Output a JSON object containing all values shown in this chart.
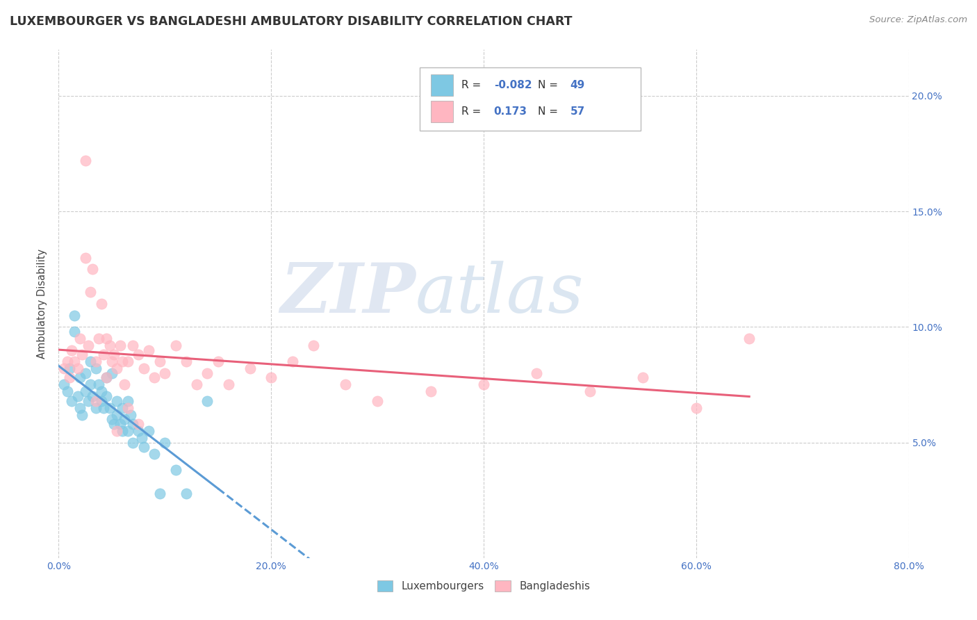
{
  "title": "LUXEMBOURGER VS BANGLADESHI AMBULATORY DISABILITY CORRELATION CHART",
  "source_text": "Source: ZipAtlas.com",
  "ylabel": "Ambulatory Disability",
  "x_min": 0.0,
  "x_max": 0.8,
  "y_min": 0.0,
  "y_max": 0.22,
  "x_ticks": [
    0.0,
    0.2,
    0.4,
    0.6,
    0.8
  ],
  "x_tick_labels": [
    "0.0%",
    "20.0%",
    "40.0%",
    "60.0%",
    "80.0%"
  ],
  "y_ticks": [
    0.05,
    0.1,
    0.15,
    0.2
  ],
  "right_y_tick_labels": [
    "5.0%",
    "10.0%",
    "15.0%",
    "20.0%"
  ],
  "lux_color": "#7ec8e3",
  "bang_color": "#ffb6c1",
  "lux_line_color": "#5b9bd5",
  "bang_line_color": "#e8607a",
  "lux_R": -0.082,
  "lux_N": 49,
  "bang_R": 0.173,
  "bang_N": 57,
  "watermark_zip": "ZIP",
  "watermark_atlas": "atlas",
  "legend_lux": "Luxembourgers",
  "legend_bang": "Bangladeshis",
  "background_color": "#ffffff",
  "grid_color": "#cccccc",
  "lux_scatter_x": [
    0.005,
    0.008,
    0.01,
    0.012,
    0.015,
    0.015,
    0.018,
    0.02,
    0.02,
    0.022,
    0.025,
    0.025,
    0.028,
    0.03,
    0.03,
    0.032,
    0.035,
    0.035,
    0.038,
    0.04,
    0.04,
    0.042,
    0.045,
    0.045,
    0.048,
    0.05,
    0.05,
    0.052,
    0.055,
    0.055,
    0.058,
    0.06,
    0.06,
    0.062,
    0.065,
    0.065,
    0.068,
    0.07,
    0.07,
    0.075,
    0.078,
    0.08,
    0.085,
    0.09,
    0.095,
    0.1,
    0.11,
    0.12,
    0.14
  ],
  "lux_scatter_y": [
    0.075,
    0.072,
    0.082,
    0.068,
    0.105,
    0.098,
    0.07,
    0.065,
    0.078,
    0.062,
    0.08,
    0.072,
    0.068,
    0.085,
    0.075,
    0.07,
    0.082,
    0.065,
    0.075,
    0.072,
    0.068,
    0.065,
    0.078,
    0.07,
    0.065,
    0.08,
    0.06,
    0.058,
    0.068,
    0.062,
    0.058,
    0.065,
    0.055,
    0.06,
    0.055,
    0.068,
    0.062,
    0.058,
    0.05,
    0.055,
    0.052,
    0.048,
    0.055,
    0.045,
    0.028,
    0.05,
    0.038,
    0.028,
    0.068
  ],
  "bang_scatter_x": [
    0.005,
    0.008,
    0.01,
    0.012,
    0.015,
    0.018,
    0.02,
    0.022,
    0.025,
    0.028,
    0.03,
    0.032,
    0.035,
    0.038,
    0.04,
    0.042,
    0.045,
    0.048,
    0.05,
    0.052,
    0.055,
    0.058,
    0.06,
    0.062,
    0.065,
    0.07,
    0.075,
    0.08,
    0.085,
    0.09,
    0.095,
    0.1,
    0.11,
    0.12,
    0.13,
    0.14,
    0.15,
    0.16,
    0.18,
    0.2,
    0.22,
    0.24,
    0.27,
    0.3,
    0.35,
    0.4,
    0.45,
    0.5,
    0.55,
    0.6,
    0.65,
    0.025,
    0.035,
    0.045,
    0.055,
    0.065,
    0.075
  ],
  "bang_scatter_y": [
    0.082,
    0.085,
    0.078,
    0.09,
    0.085,
    0.082,
    0.095,
    0.088,
    0.13,
    0.092,
    0.115,
    0.125,
    0.085,
    0.095,
    0.11,
    0.088,
    0.095,
    0.092,
    0.085,
    0.088,
    0.082,
    0.092,
    0.085,
    0.075,
    0.085,
    0.092,
    0.088,
    0.082,
    0.09,
    0.078,
    0.085,
    0.08,
    0.092,
    0.085,
    0.075,
    0.08,
    0.085,
    0.075,
    0.082,
    0.078,
    0.085,
    0.092,
    0.075,
    0.068,
    0.072,
    0.075,
    0.08,
    0.072,
    0.078,
    0.065,
    0.095,
    0.172,
    0.068,
    0.078,
    0.055,
    0.065,
    0.058
  ]
}
